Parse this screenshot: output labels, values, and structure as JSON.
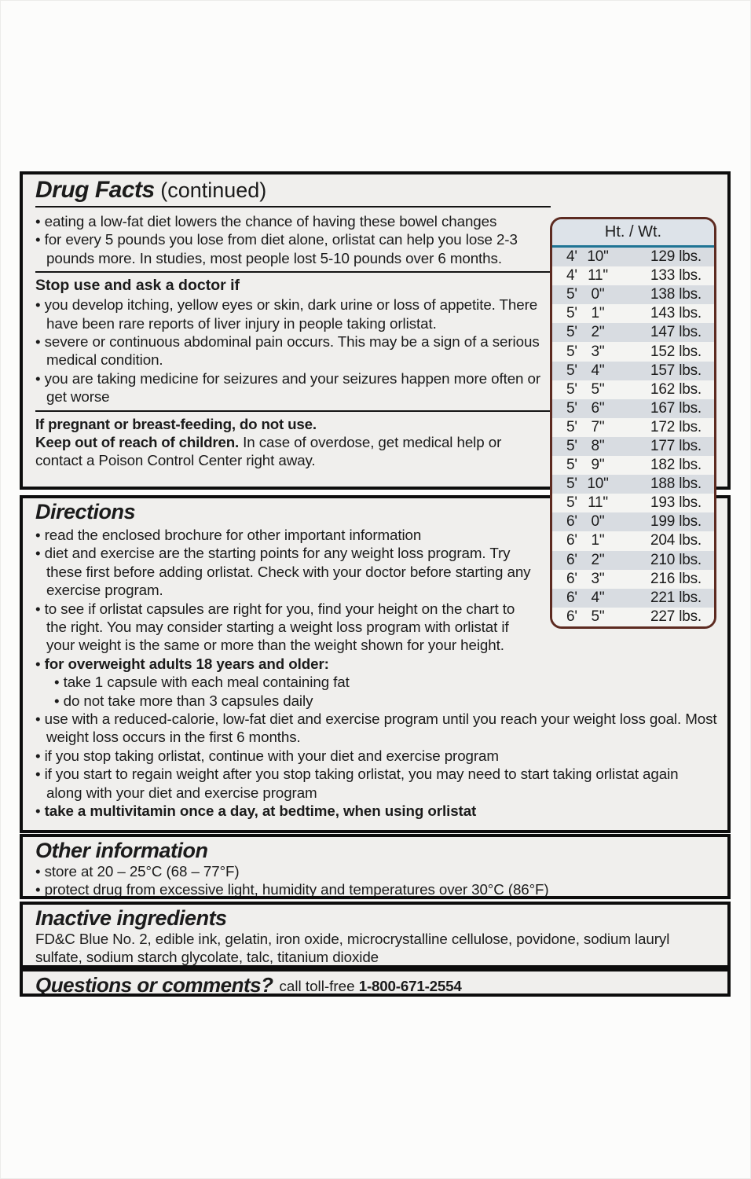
{
  "drug_facts": {
    "title": "Drug Facts",
    "title_suffix": " (continued)",
    "bullets": [
      "eating a low-fat diet lowers the chance of having these bowel changes",
      "for every 5 pounds you lose from diet alone, orlistat can help you lose 2-3 pounds more. In studies, most people lost 5-10 pounds over 6 months."
    ],
    "stop_use": {
      "heading": "Stop use and ask a doctor if",
      "bullets": [
        "you develop itching, yellow eyes or skin, dark urine or loss of appetite. There have been rare reports of liver injury in people taking orlistat.",
        "severe or continuous abdominal pain occurs. This may be a sign of a serious medical condition.",
        "you are taking medicine for seizures and your seizures happen more often or get worse"
      ]
    },
    "pregnancy": "If pregnant or breast-feeding, do not use.",
    "children_bold": "Keep out of reach of children.",
    "children_text": " In case of overdose, get medical help or contact a Poison Control Center right away."
  },
  "htwt": {
    "header": "Ht. / Wt.",
    "rows": [
      {
        "ft": "4'",
        "in": "10\"",
        "wt": "129 lbs."
      },
      {
        "ft": "4'",
        "in": "11\"",
        "wt": "133 lbs."
      },
      {
        "ft": "5'",
        "in": "0\"",
        "wt": "138 lbs."
      },
      {
        "ft": "5'",
        "in": "1\"",
        "wt": "143 lbs."
      },
      {
        "ft": "5'",
        "in": "2\"",
        "wt": "147 lbs."
      },
      {
        "ft": "5'",
        "in": "3\"",
        "wt": "152 lbs."
      },
      {
        "ft": "5'",
        "in": "4\"",
        "wt": "157 lbs."
      },
      {
        "ft": "5'",
        "in": "5\"",
        "wt": "162 lbs."
      },
      {
        "ft": "5'",
        "in": "6\"",
        "wt": "167 lbs."
      },
      {
        "ft": "5'",
        "in": "7\"",
        "wt": "172 lbs."
      },
      {
        "ft": "5'",
        "in": "8\"",
        "wt": "177 lbs."
      },
      {
        "ft": "5'",
        "in": "9\"",
        "wt": "182 lbs."
      },
      {
        "ft": "5'",
        "in": "10\"",
        "wt": "188 lbs."
      },
      {
        "ft": "5'",
        "in": "11\"",
        "wt": "193 lbs."
      },
      {
        "ft": "6'",
        "in": "0\"",
        "wt": "199 lbs."
      },
      {
        "ft": "6'",
        "in": "1\"",
        "wt": "204 lbs."
      },
      {
        "ft": "6'",
        "in": "2\"",
        "wt": "210 lbs."
      },
      {
        "ft": "6'",
        "in": "3\"",
        "wt": "216 lbs."
      },
      {
        "ft": "6'",
        "in": "4\"",
        "wt": "221 lbs."
      },
      {
        "ft": "6'",
        "in": "5\"",
        "wt": "227 lbs."
      }
    ],
    "colors": {
      "border": "#5d2b21",
      "header_bg": "#dde3e9",
      "header_rule": "#1f7494",
      "row_stripe": "#d8dce1",
      "row_plain": "#f4f4f2"
    }
  },
  "directions": {
    "heading": "Directions",
    "bullets": [
      "read the enclosed brochure for other important information",
      "diet and exercise are the starting points for any weight loss program. Try these first before adding orlistat. Check with your doctor before starting any exercise program.",
      "to see if orlistat capsules are right for you, find your height on the chart to the right. You may consider starting a weight loss program with orlistat if your weight is the same or more than the weight shown for your height."
    ],
    "adults_bold": "for overweight adults 18 years and older:",
    "adults_sub": [
      "take 1 capsule with each meal containing fat",
      "do not take more than 3 capsules daily"
    ],
    "bullets2": [
      "use with a reduced-calorie, low-fat diet and exercise program until you reach your weight loss goal. Most weight loss occurs in the first 6 months.",
      "if you stop taking orlistat, continue with your diet and exercise program",
      "if you start to regain weight after you stop taking orlistat, you may need to start taking orlistat again along with your diet and exercise program"
    ],
    "multivitamin_bold": "take a multivitamin once a day, at bedtime, when using orlistat"
  },
  "other_information": {
    "heading": "Other information",
    "bullets": [
      "store at 20 – 25°C (68 – 77°F)",
      "protect drug from excessive light, humidity and temperatures over 30°C (86°F)"
    ]
  },
  "inactive_ingredients": {
    "heading": "Inactive ingredients",
    "text": "FD&C Blue No. 2, edible ink, gelatin, iron oxide, microcrystalline cellulose, povidone, sodium lauryl sulfate, sodium starch glycolate, talc, titanium dioxide"
  },
  "questions": {
    "heading": "Questions or comments?",
    "text": "call toll-free ",
    "phone": "1-800-671-2554"
  }
}
